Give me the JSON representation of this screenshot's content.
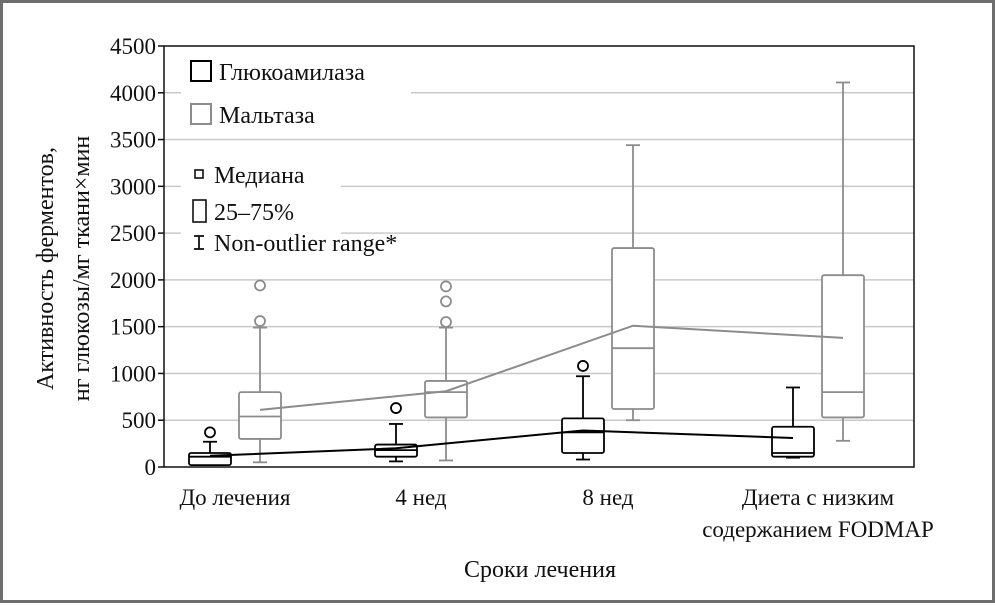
{
  "chart_data": {
    "type": "box",
    "xlabel": "Сроки лечения",
    "ylabel_lines": [
      "Активность ферментов,",
      "нг глюкозы/мг ткани×мин"
    ],
    "ylim": [
      0,
      4500
    ],
    "yticks": [
      0,
      500,
      1000,
      1500,
      2000,
      2500,
      3000,
      3500,
      4000,
      4500
    ],
    "grid": "horizontal",
    "categories": [
      {
        "lines": [
          "До лечения"
        ]
      },
      {
        "lines": [
          "4 нед"
        ]
      },
      {
        "lines": [
          "8 нед"
        ]
      },
      {
        "lines": [
          "Диета с низким",
          "содержанием FODMAP"
        ]
      }
    ],
    "legend": {
      "position": "top-left",
      "series_entries": [
        "Глюкоамилаза",
        "Мальтаза"
      ],
      "key_entries": [
        "Медиана",
        "25–75%",
        "Non-outlier range*"
      ]
    },
    "series": [
      {
        "name": "Глюкоамилаза",
        "color": "#000000",
        "boxes": [
          {
            "whisker_low": 20,
            "q1": 20,
            "median": 110,
            "q3": 150,
            "whisker_high": 270,
            "outliers": [
              370
            ]
          },
          {
            "whisker_low": 60,
            "q1": 110,
            "median": 180,
            "q3": 240,
            "whisker_high": 460,
            "outliers": [
              630
            ]
          },
          {
            "whisker_low": 80,
            "q1": 150,
            "median": 370,
            "q3": 520,
            "whisker_high": 970,
            "outliers": [
              1080
            ]
          },
          {
            "whisker_low": 100,
            "q1": 110,
            "median": 150,
            "q3": 430,
            "whisker_high": 850,
            "outliers": []
          }
        ],
        "mean_line": [
          120,
          200,
          390,
          310
        ]
      },
      {
        "name": "Мальтаза",
        "color": "#8c8c8c",
        "boxes": [
          {
            "whisker_low": 50,
            "q1": 300,
            "median": 540,
            "q3": 800,
            "whisker_high": 1490,
            "outliers": [
              1560,
              1940
            ]
          },
          {
            "whisker_low": 70,
            "q1": 530,
            "median": 800,
            "q3": 920,
            "whisker_high": 1490,
            "outliers": [
              1550,
              1770,
              1930
            ]
          },
          {
            "whisker_low": 500,
            "q1": 620,
            "median": 1270,
            "q3": 2340,
            "whisker_high": 3440,
            "outliers": []
          },
          {
            "whisker_low": 280,
            "q1": 530,
            "median": 800,
            "q3": 2050,
            "whisker_high": 4110,
            "outliers": []
          }
        ],
        "mean_line": [
          610,
          810,
          1510,
          1380
        ]
      }
    ]
  }
}
